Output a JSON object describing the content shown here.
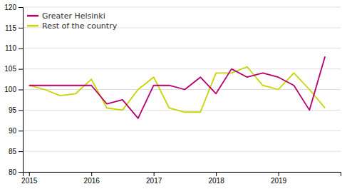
{
  "chart_data": {
    "type": "line",
    "x": [
      2015,
      2015.25,
      2015.5,
      2015.75,
      2016,
      2016.25,
      2016.5,
      2016.75,
      2017,
      2017.25,
      2017.5,
      2017.75,
      2018,
      2018.25,
      2018.5,
      2018.75,
      2019,
      2019.25,
      2019.5,
      2019.75
    ],
    "series": [
      {
        "name": "Greater Helsinki",
        "color": "#b5006e",
        "values": [
          101,
          101,
          101,
          101,
          101,
          96.5,
          97.5,
          93,
          101,
          101,
          100,
          103,
          99,
          105,
          103,
          104,
          103,
          101,
          95,
          108
        ]
      },
      {
        "name": "Rest of the country",
        "color": "#c8d400",
        "values": [
          101,
          100,
          98.5,
          99,
          102.5,
          95.5,
          95,
          100,
          103,
          95.5,
          94.5,
          94.5,
          104,
          104,
          105.5,
          101,
          100,
          104,
          100,
          95.5
        ]
      }
    ],
    "xlim": [
      2014.9,
      2020
    ],
    "xticks": [
      2015,
      2016,
      2017,
      2018,
      2019
    ],
    "ylim": [
      80,
      120
    ],
    "yticks": [
      80,
      85,
      90,
      95,
      100,
      105,
      110,
      115,
      120
    ],
    "grid": true,
    "legend": "upper-left"
  }
}
